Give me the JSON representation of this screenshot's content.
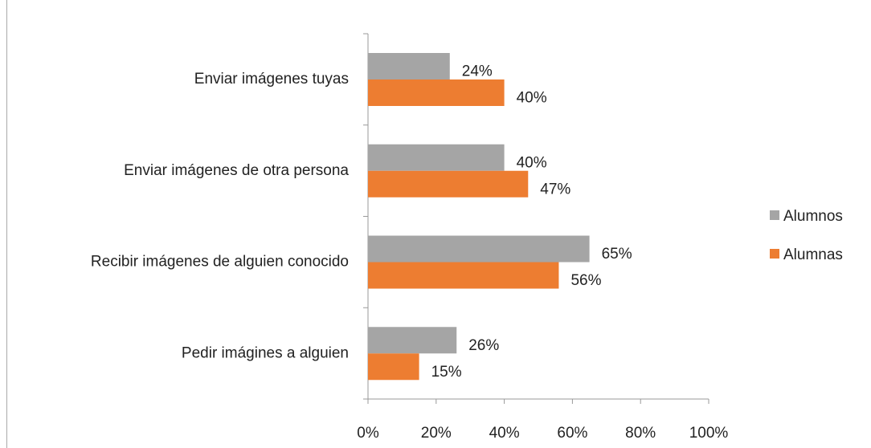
{
  "chart_data": {
    "type": "barh",
    "categories": [
      "Enviar imágenes tuyas",
      "Enviar imágenes de otra persona",
      "Recibir imágenes de alguien conocido",
      "Pedir imágines a alguien"
    ],
    "series": [
      {
        "name": "Alumnos",
        "color": "#a5a5a5",
        "values": [
          24,
          40,
          65,
          26
        ],
        "value_labels": [
          "24%",
          "40%",
          "65%",
          "26%"
        ]
      },
      {
        "name": "Alumnas",
        "color": "#ed7d31",
        "values": [
          40,
          47,
          56,
          15
        ],
        "value_labels": [
          "40%",
          "47%",
          "56%",
          "15%"
        ]
      }
    ],
    "xlim": [
      0,
      100
    ],
    "xticks": [
      {
        "value": 0,
        "label": "0%"
      },
      {
        "value": 20,
        "label": "20%"
      },
      {
        "value": 40,
        "label": "40%"
      },
      {
        "value": 60,
        "label": "60%"
      },
      {
        "value": 80,
        "label": "80%"
      },
      {
        "value": 100,
        "label": "100%"
      }
    ],
    "legend": "right"
  }
}
